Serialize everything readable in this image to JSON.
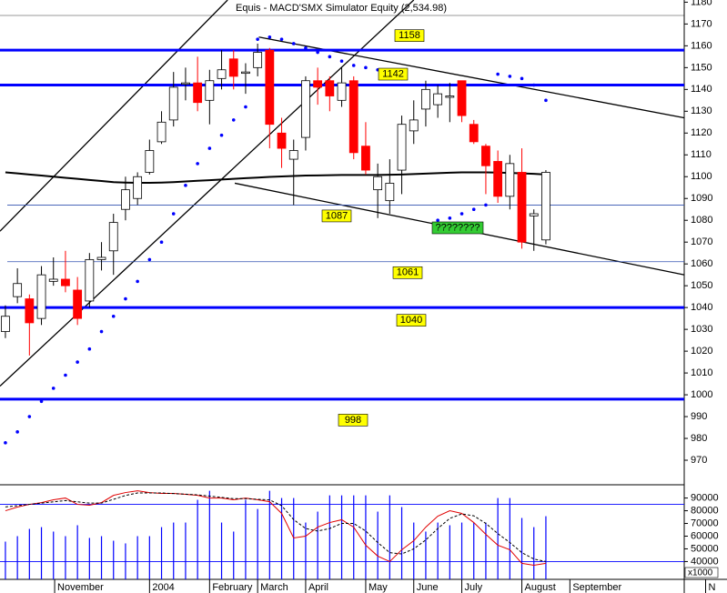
{
  "chart_data": [
    {
      "type": "candlestick",
      "title": "Equis - MACD'SMX Simulator Equity (2,534.98)",
      "x": [
        0,
        1,
        2,
        3,
        4,
        5,
        6,
        7,
        8,
        9,
        10,
        11,
        12,
        13,
        14,
        15,
        16,
        17,
        18,
        19,
        20,
        21,
        22,
        23,
        24,
        25,
        26,
        27,
        28,
        29,
        30,
        31,
        32,
        33,
        34,
        35,
        36,
        37,
        38,
        39,
        40,
        41,
        42,
        43,
        44,
        45
      ],
      "open": [
        1029,
        1045,
        1044,
        1035,
        1052,
        1053,
        1048,
        1043,
        1062,
        1066,
        1085,
        1090,
        1102,
        1116,
        1126,
        1143,
        1143,
        1135,
        1145,
        1154,
        1148,
        1150,
        1158,
        1120,
        1108,
        1118,
        1144,
        1144,
        1135,
        1144,
        1114,
        1094,
        1089,
        1103,
        1121,
        1131,
        1133,
        1137,
        1144,
        1124,
        1114,
        1107,
        1091,
        1102,
        1082,
        1071
      ],
      "high": [
        1041,
        1058,
        1046,
        1059,
        1063,
        1066,
        1054,
        1065,
        1070,
        1083,
        1100,
        1102,
        1117,
        1130,
        1148,
        1150,
        1155,
        1149,
        1158,
        1158,
        1152,
        1161,
        1159,
        1127,
        1117,
        1146,
        1150,
        1146,
        1150,
        1146,
        1125,
        1106,
        1108,
        1128,
        1135,
        1144,
        1142,
        1143,
        1144,
        1126,
        1115,
        1112,
        1110,
        1113,
        1085,
        1103
      ],
      "low": [
        1026,
        1042,
        1018,
        1032,
        1050,
        1047,
        1032,
        1040,
        1057,
        1055,
        1080,
        1087,
        1101,
        1115,
        1123,
        1135,
        1130,
        1124,
        1140,
        1140,
        1138,
        1146,
        1113,
        1104,
        1087,
        1112,
        1133,
        1130,
        1132,
        1108,
        1101,
        1081,
        1083,
        1092,
        1115,
        1123,
        1127,
        1125,
        1125,
        1115,
        1092,
        1088,
        1085,
        1067,
        1066,
        1069
      ],
      "close": [
        1036,
        1051,
        1033,
        1055,
        1053,
        1050,
        1035,
        1062,
        1063,
        1079,
        1094,
        1100,
        1112,
        1125,
        1141,
        1143,
        1134,
        1144,
        1149,
        1146,
        1148,
        1157,
        1124,
        1113,
        1112,
        1144,
        1141,
        1137,
        1143,
        1111,
        1103,
        1100,
        1097,
        1124,
        1126,
        1140,
        1138,
        1137,
        1128,
        1116,
        1105,
        1091,
        1106,
        1070,
        1083,
        1102
      ],
      "up_color": "#ffffff",
      "down_color": "#ff0000",
      "sar": [
        978,
        983,
        990,
        997,
        1003,
        1009,
        1015,
        1021,
        1029,
        1036,
        1044,
        1052,
        1062,
        1070,
        1083,
        1096,
        1106,
        1113,
        1119,
        1126,
        1132,
        1163,
        1164,
        1163,
        1161,
        1159,
        1157,
        1155,
        1153,
        1151,
        1150,
        1149,
        1147,
        1145,
        null,
        null,
        1080,
        1081,
        1083,
        1085,
        1087,
        1147,
        1146,
        1145,
        1142,
        1135
      ],
      "sar_color": "#0000ff",
      "ma": [
        1102,
        1101.5,
        1101,
        1100.5,
        1100,
        1099.5,
        1099,
        1098.5,
        1098,
        1097.5,
        1097.3,
        1097.2,
        1097.2,
        1097.3,
        1097.5,
        1097.8,
        1098.1,
        1098.4,
        1098.7,
        1099,
        1099.3,
        1099.6,
        1099.9,
        1100.1,
        1100.3,
        1100.5,
        1100.6,
        1100.7,
        1100.8,
        1100.8,
        1100.8,
        1100.8,
        1100.9,
        1101,
        1101.2,
        1101.4,
        1101.6,
        1101.8,
        1102,
        1102,
        1102,
        1101.9,
        1101.7,
        1101.5,
        1101.3,
        1101
      ],
      "ma_color": "#000000",
      "trendlines": [
        {
          "x": [
            -0.45,
            18.5
          ],
          "y": [
            1075,
            1181
          ]
        },
        {
          "x": [
            -0.45,
            34.0
          ],
          "y": [
            1004,
            1181
          ]
        },
        {
          "x": [
            21.1,
            56.5
          ],
          "y": [
            1164,
            1127
          ]
        },
        {
          "x": [
            19.1,
            56.5
          ],
          "y": [
            1097,
            1055
          ]
        }
      ],
      "levels": [
        {
          "value": 1158,
          "thick": true
        },
        {
          "value": 1142,
          "thick": true
        },
        {
          "value": 1087,
          "thick": false
        },
        {
          "value": 1061,
          "thick": false
        },
        {
          "value": 1040,
          "thick": true
        },
        {
          "value": 998,
          "thick": true
        }
      ],
      "level_color": "#0000ff",
      "annotations": [
        {
          "text": "????????"
        }
      ],
      "xlim": [
        -0.45,
        56.52
      ],
      "ylim": [
        960,
        1181
      ],
      "yticks": [
        970,
        980,
        990,
        1000,
        1010,
        1020,
        1030,
        1040,
        1050,
        1060,
        1070,
        1080,
        1090,
        1100,
        1110,
        1120,
        1130,
        1140,
        1150,
        1160,
        1170,
        1180
      ],
      "xticks": [
        {
          "value": 4.1,
          "label": "November"
        },
        {
          "value": 12,
          "label": "2004"
        },
        {
          "value": 17,
          "label": "February"
        },
        {
          "value": 21,
          "label": "March"
        },
        {
          "value": 25,
          "label": "April"
        },
        {
          "value": 30,
          "label": "May"
        },
        {
          "value": 34,
          "label": "June"
        },
        {
          "value": 38,
          "label": "July"
        },
        {
          "value": 43,
          "label": "August"
        },
        {
          "value": 47,
          "label": "September"
        },
        {
          "value": 58.3,
          "label": "N"
        }
      ]
    },
    {
      "type": "volume",
      "values": [
        55700,
        60000,
        65700,
        67100,
        63600,
        60000,
        68600,
        58600,
        60000,
        56400,
        54300,
        60000,
        60000,
        67100,
        70700,
        70700,
        88600,
        95700,
        70700,
        63600,
        88600,
        81400,
        95700,
        90000,
        90000,
        70700,
        79300,
        92100,
        92100,
        92100,
        92100,
        79300,
        92100,
        82900,
        70700,
        63600,
        70700,
        68600,
        70700,
        70700,
        70700,
        90000,
        90000,
        74300,
        67100,
        75700
      ],
      "color": "#0000ff",
      "lines": [
        {
          "color": "#e00000",
          "dashed": false,
          "values": [
            80000,
            82900,
            85000,
            86400,
            88600,
            90000,
            85000,
            84300,
            86400,
            92100,
            94300,
            95700,
            94300,
            93600,
            93600,
            92900,
            92100,
            90000,
            90000,
            88600,
            90000,
            88600,
            87100,
            77900,
            58600,
            60000,
            67100,
            70700,
            72900,
            67100,
            52900,
            44300,
            40000,
            49300,
            56400,
            67100,
            75700,
            80000,
            77900,
            70700,
            61400,
            52900,
            49300,
            38600,
            37100,
            38600
          ]
        },
        {
          "color": "#000000",
          "dashed": true,
          "values": [
            83000,
            84000,
            85000,
            86000,
            87000,
            88000,
            87000,
            86000,
            86000,
            89000,
            92000,
            94000,
            94000,
            94000,
            93500,
            93000,
            92500,
            91500,
            90500,
            89500,
            89500,
            89000,
            88500,
            84000,
            73000,
            66000,
            64000,
            66000,
            70000,
            70000,
            64000,
            55000,
            47000,
            46000,
            50000,
            57000,
            66000,
            74000,
            77500,
            76000,
            70000,
            62000,
            55000,
            47000,
            42000,
            40000
          ]
        }
      ],
      "levels": [
        85000,
        40000
      ],
      "scale_label": "x1000",
      "ylim": [
        26000,
        99000
      ],
      "yticks": [
        40000,
        50000,
        60000,
        70000,
        80000,
        90000
      ]
    }
  ]
}
